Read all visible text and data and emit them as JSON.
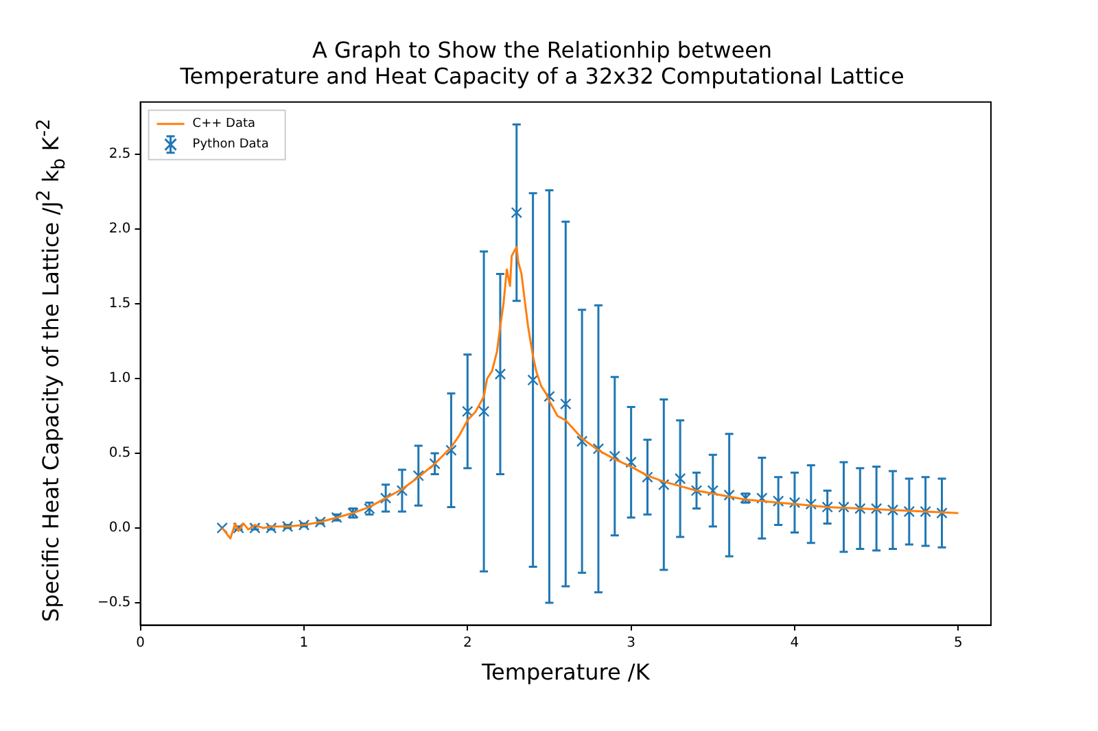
{
  "chart_data": {
    "type": "line",
    "title": "A Graph to Show the Relationhip between\nTemperature and Heat Capacity of a 32x32 Computational Lattice",
    "xlabel": "Temperature /K",
    "ylabel": "Specific Heat Capacity of the Lattice /J$^{2}$ k$_{b}$ K$^{-2}$",
    "xlim": [
      0,
      5.2
    ],
    "xticks": [
      0,
      1,
      2,
      3,
      4,
      5
    ],
    "ylim": [
      -0.65,
      2.85
    ],
    "yticks": [
      {
        "value": -0.5,
        "label": "−0.5"
      },
      {
        "value": 0,
        "label": "0.0"
      },
      {
        "value": 0.5,
        "label": "0.5"
      },
      {
        "value": 1,
        "label": "1.0"
      },
      {
        "value": 1.5,
        "label": "1.5"
      },
      {
        "value": 2,
        "label": "2.0"
      },
      {
        "value": 2.5,
        "label": "2.5"
      }
    ],
    "grid": false,
    "legend": "top left",
    "series": [
      {
        "name": "C++ Data",
        "type": "line",
        "color": "#ff7f0e",
        "marker": "none",
        "line_style": "solid",
        "x": [
          0.5,
          0.55,
          0.58,
          0.6,
          0.63,
          0.66,
          0.7,
          0.75,
          0.8,
          0.9,
          1.0,
          1.1,
          1.2,
          1.3,
          1.4,
          1.5,
          1.6,
          1.7,
          1.8,
          1.9,
          1.95,
          2.0,
          2.05,
          2.1,
          2.12,
          2.15,
          2.18,
          2.2,
          2.22,
          2.24,
          2.26,
          2.27,
          2.29,
          2.3,
          2.31,
          2.33,
          2.35,
          2.37,
          2.4,
          2.42,
          2.45,
          2.48,
          2.5,
          2.55,
          2.6,
          2.7,
          2.8,
          2.9,
          3.0,
          3.1,
          3.2,
          3.3,
          3.4,
          3.5,
          3.6,
          3.7,
          3.8,
          3.9,
          4.0,
          4.2,
          4.4,
          4.6,
          4.8,
          5.0
        ],
        "values": [
          0,
          -0.07,
          0.03,
          -0.02,
          0.03,
          -0.01,
          0.02,
          0.0,
          0.01,
          0.01,
          0.02,
          0.04,
          0.07,
          0.1,
          0.14,
          0.2,
          0.26,
          0.34,
          0.43,
          0.54,
          0.62,
          0.72,
          0.78,
          0.88,
          1.0,
          1.05,
          1.18,
          1.35,
          1.5,
          1.73,
          1.62,
          1.82,
          1.86,
          1.88,
          1.78,
          1.7,
          1.52,
          1.35,
          1.15,
          1.05,
          0.95,
          0.9,
          0.85,
          0.75,
          0.72,
          0.6,
          0.52,
          0.46,
          0.41,
          0.35,
          0.31,
          0.28,
          0.25,
          0.23,
          0.21,
          0.19,
          0.18,
          0.17,
          0.16,
          0.14,
          0.13,
          0.12,
          0.11,
          0.1
        ]
      },
      {
        "name": "Python Data",
        "type": "scatter",
        "color": "#1f77b4",
        "marker": "cross",
        "x": [
          0.5,
          0.6,
          0.7,
          0.8,
          0.9,
          1.0,
          1.1,
          1.2,
          1.3,
          1.4,
          1.5,
          1.6,
          1.7,
          1.8,
          1.9,
          2.0,
          2.1,
          2.2,
          2.3,
          2.4,
          2.5,
          2.6,
          2.7,
          2.8,
          2.9,
          3.0,
          3.1,
          3.2,
          3.3,
          3.4,
          3.5,
          3.6,
          3.7,
          3.8,
          3.9,
          4.0,
          4.1,
          4.2,
          4.3,
          4.4,
          4.5,
          4.6,
          4.7,
          4.8,
          4.9
        ],
        "values": [
          0.0,
          0.0,
          0.0,
          0.0,
          0.01,
          0.02,
          0.04,
          0.07,
          0.1,
          0.13,
          0.2,
          0.25,
          0.35,
          0.43,
          0.52,
          0.78,
          0.78,
          1.03,
          2.11,
          0.99,
          0.88,
          0.83,
          0.58,
          0.53,
          0.48,
          0.44,
          0.34,
          0.29,
          0.33,
          0.25,
          0.25,
          0.22,
          0.2,
          0.2,
          0.18,
          0.17,
          0.16,
          0.14,
          0.14,
          0.13,
          0.13,
          0.12,
          0.11,
          0.11,
          0.1
        ],
        "errors": [
          null,
          0.01,
          0.01,
          0.01,
          0.01,
          0.01,
          0.01,
          0.02,
          0.03,
          0.04,
          0.09,
          0.14,
          0.2,
          0.07,
          0.38,
          0.38,
          1.07,
          0.67,
          0.59,
          1.25,
          1.38,
          1.22,
          0.88,
          0.96,
          0.53,
          0.37,
          0.25,
          0.57,
          0.39,
          0.12,
          0.24,
          0.41,
          0.03,
          0.27,
          0.16,
          0.2,
          0.26,
          0.11,
          0.3,
          0.27,
          0.28,
          0.26,
          0.22,
          0.23,
          0.23
        ]
      }
    ]
  }
}
